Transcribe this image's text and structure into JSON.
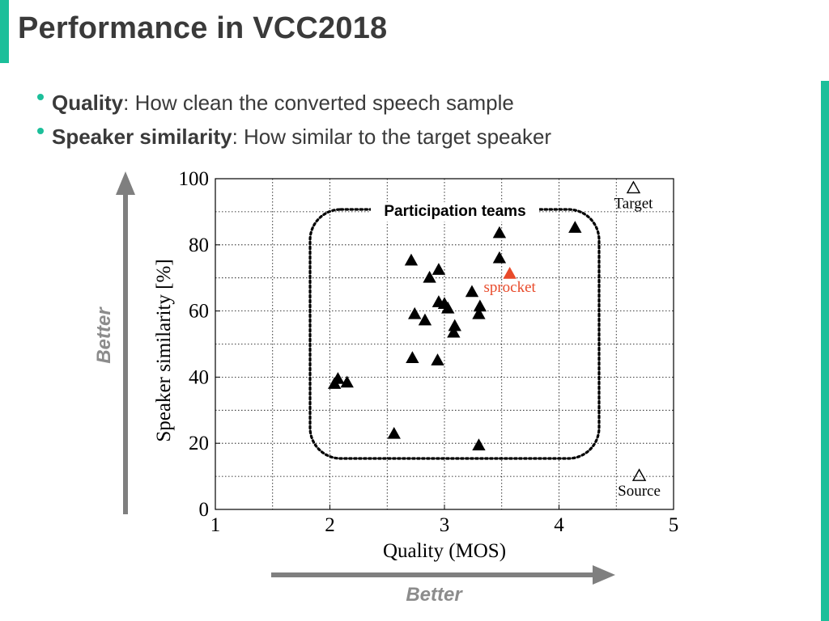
{
  "slide": {
    "title": "Performance in VCC2018",
    "bullets": [
      {
        "term": "Quality",
        "rest": ": How clean the converted speech sample"
      },
      {
        "term": "Speaker similarity",
        "rest": ": How similar to the target speaker"
      }
    ],
    "arrow_x_label": "Better",
    "arrow_y_label": "Better",
    "accent_color": "#1cbf9a"
  },
  "chart_data": {
    "type": "scatter",
    "xlabel": "Quality (MOS)",
    "ylabel": "Speaker similarity [%]",
    "xlim": [
      1,
      5
    ],
    "ylim": [
      0,
      100
    ],
    "xticks": [
      1,
      2,
      3,
      4,
      5
    ],
    "yticks": [
      0,
      20,
      40,
      60,
      80,
      100
    ],
    "grid": true,
    "region_label": "Participation teams",
    "series": [
      {
        "color": "#000000",
        "marker": "filled-triangle",
        "points": [
          [
            2.04,
            37.8
          ],
          [
            2.07,
            39.3
          ],
          [
            2.15,
            38.2
          ],
          [
            2.56,
            22.7
          ],
          [
            2.71,
            75.1
          ],
          [
            2.72,
            45.6
          ],
          [
            2.74,
            58.9
          ],
          [
            2.83,
            57.0
          ],
          [
            2.87,
            69.9
          ],
          [
            2.95,
            72.3
          ],
          [
            2.94,
            44.9
          ],
          [
            2.95,
            62.5
          ],
          [
            3.0,
            62.0
          ],
          [
            3.03,
            60.6
          ],
          [
            3.08,
            53.3
          ],
          [
            3.09,
            55.3
          ],
          [
            3.24,
            65.6
          ],
          [
            3.3,
            58.9
          ],
          [
            3.31,
            61.2
          ],
          [
            3.3,
            19.2
          ],
          [
            3.48,
            83.4
          ],
          [
            3.48,
            75.8
          ],
          [
            4.14,
            85.0
          ]
        ]
      },
      {
        "name": "sprocket",
        "color": "#e84a2a",
        "marker": "filled-triangle",
        "points": [
          [
            3.57,
            71.1
          ]
        ]
      },
      {
        "name": "Target",
        "color": "#000000",
        "marker": "open-triangle",
        "points": [
          [
            4.65,
            97.0
          ]
        ]
      },
      {
        "name": "Source",
        "color": "#000000",
        "marker": "open-triangle",
        "points": [
          [
            4.7,
            10.0
          ]
        ]
      }
    ]
  }
}
